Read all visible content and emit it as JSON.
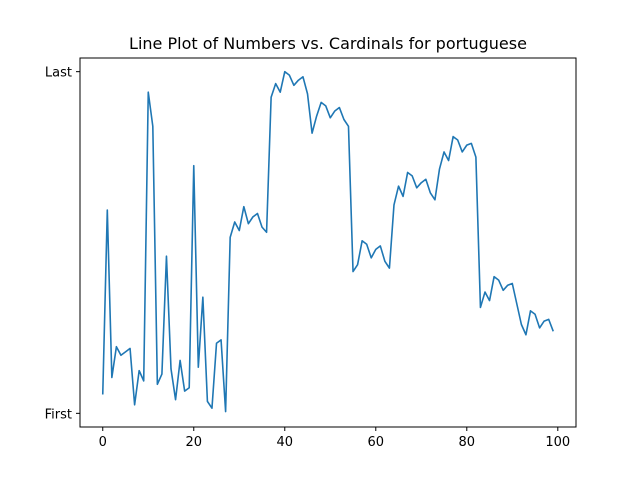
{
  "chart_data": {
    "type": "line",
    "title": "Line Plot of Numbers vs. Cardinals for portuguese",
    "xlabel": "",
    "ylabel": "",
    "xlim": [
      -5,
      104
    ],
    "ylim": [
      -0.04,
      1.04
    ],
    "xticks": [
      0,
      20,
      40,
      60,
      80,
      100
    ],
    "xtick_labels": [
      "0",
      "20",
      "40",
      "60",
      "80",
      "100"
    ],
    "yticks": [
      0,
      1
    ],
    "ytick_labels": [
      "First",
      "Last"
    ],
    "grid": false,
    "legend": "none",
    "line_color": "#1f77b4",
    "series": [
      {
        "x": [
          0,
          1,
          2,
          3,
          4,
          5,
          6,
          7,
          8,
          9,
          10,
          11,
          12,
          13,
          14,
          15,
          16,
          17,
          18,
          19,
          20,
          21,
          22,
          23,
          24,
          25,
          26,
          27,
          28,
          29,
          30,
          31,
          32,
          33,
          34,
          35,
          36,
          37,
          38,
          39,
          40,
          41,
          42,
          43,
          44,
          45,
          46,
          47,
          48,
          49,
          50,
          51,
          52,
          53,
          54,
          55,
          56,
          57,
          58,
          59,
          60,
          61,
          62,
          63,
          64,
          65,
          66,
          67,
          68,
          69,
          70,
          71,
          72,
          73,
          74,
          75,
          76,
          77,
          78,
          79,
          80,
          81,
          82,
          83,
          84,
          85,
          86,
          87,
          88,
          89,
          90,
          91,
          92,
          93,
          94,
          95,
          96,
          97,
          98,
          99
        ],
        "values": [
          0.055,
          0.595,
          0.105,
          0.195,
          0.17,
          0.18,
          0.19,
          0.025,
          0.125,
          0.095,
          0.94,
          0.84,
          0.085,
          0.115,
          0.46,
          0.13,
          0.04,
          0.155,
          0.065,
          0.075,
          0.725,
          0.135,
          0.34,
          0.035,
          0.015,
          0.205,
          0.215,
          0.005,
          0.515,
          0.56,
          0.535,
          0.605,
          0.555,
          0.575,
          0.585,
          0.545,
          0.53,
          0.925,
          0.965,
          0.94,
          1.0,
          0.99,
          0.96,
          0.975,
          0.985,
          0.935,
          0.82,
          0.87,
          0.91,
          0.9,
          0.865,
          0.885,
          0.895,
          0.86,
          0.84,
          0.415,
          0.435,
          0.505,
          0.495,
          0.455,
          0.48,
          0.49,
          0.445,
          0.425,
          0.61,
          0.665,
          0.635,
          0.705,
          0.695,
          0.66,
          0.675,
          0.685,
          0.645,
          0.625,
          0.715,
          0.765,
          0.74,
          0.81,
          0.8,
          0.765,
          0.785,
          0.79,
          0.75,
          0.31,
          0.355,
          0.33,
          0.4,
          0.39,
          0.36,
          0.375,
          0.38,
          0.32,
          0.26,
          0.23,
          0.3,
          0.29,
          0.25,
          0.27,
          0.275,
          0.24
        ]
      }
    ]
  }
}
